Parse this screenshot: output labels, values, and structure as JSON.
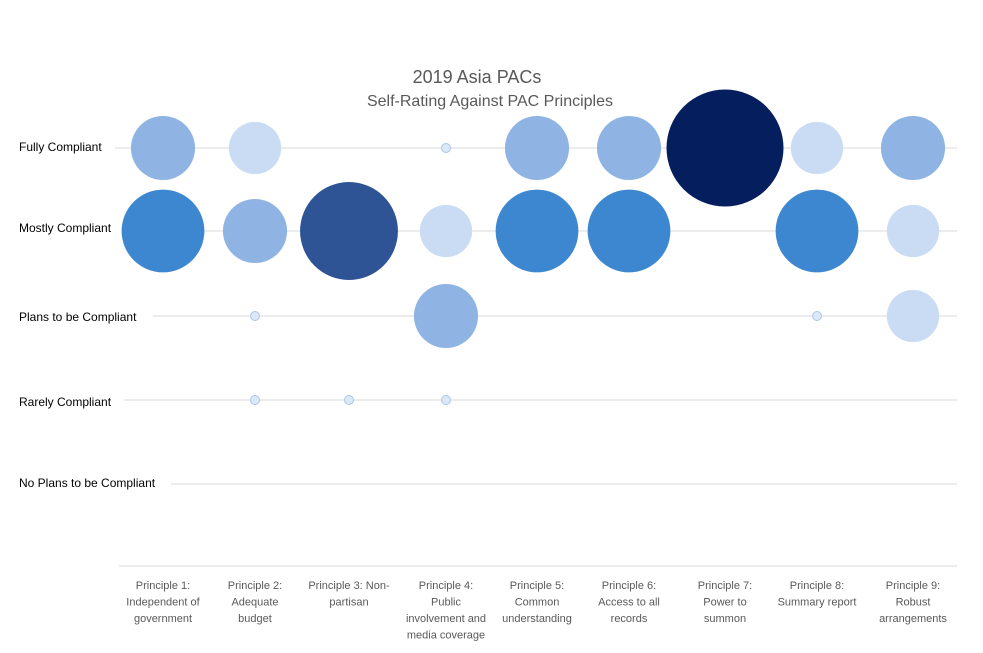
{
  "chart_data": {
    "type": "bubble",
    "title": "2019 Asia PACs",
    "subtitle": "Self-Rating Against PAC Principles",
    "y_categories": [
      "Fully Compliant",
      "Mostly Compliant",
      "Plans to be Compliant",
      "Rarely Compliant",
      "No Plans to be Compliant"
    ],
    "x_categories": [
      [
        "Principle 1:",
        "Independent of",
        "government"
      ],
      [
        "Principle 2:",
        "Adequate",
        "budget"
      ],
      [
        "Principle 3: Non-",
        "partisan"
      ],
      [
        "Principle 4:",
        "Public",
        "involvement and",
        "media coverage"
      ],
      [
        "Principle 5:",
        "Common",
        "understanding"
      ],
      [
        "Principle 6:",
        "Access to all",
        "records"
      ],
      [
        "Principle 7:",
        "Power to",
        "summon"
      ],
      [
        "Principle 8:",
        "Summary report"
      ],
      [
        "Principle 9:",
        "Robust",
        "arrangements"
      ]
    ],
    "bubbles": [
      {
        "x": 1,
        "y": "Fully Compliant",
        "size": 3
      },
      {
        "x": 2,
        "y": "Fully Compliant",
        "size": 2
      },
      {
        "x": 4,
        "y": "Fully Compliant",
        "size": 1
      },
      {
        "x": 5,
        "y": "Fully Compliant",
        "size": 3
      },
      {
        "x": 6,
        "y": "Fully Compliant",
        "size": 3
      },
      {
        "x": 7,
        "y": "Fully Compliant",
        "size": 10
      },
      {
        "x": 8,
        "y": "Fully Compliant",
        "size": 2
      },
      {
        "x": 9,
        "y": "Fully Compliant",
        "size": 3
      },
      {
        "x": 1,
        "y": "Mostly Compliant",
        "size": 5
      },
      {
        "x": 2,
        "y": "Mostly Compliant",
        "size": 3
      },
      {
        "x": 3,
        "y": "Mostly Compliant",
        "size": 7
      },
      {
        "x": 4,
        "y": "Mostly Compliant",
        "size": 2
      },
      {
        "x": 5,
        "y": "Mostly Compliant",
        "size": 5
      },
      {
        "x": 6,
        "y": "Mostly Compliant",
        "size": 5
      },
      {
        "x": 8,
        "y": "Mostly Compliant",
        "size": 5
      },
      {
        "x": 9,
        "y": "Mostly Compliant",
        "size": 2
      },
      {
        "x": 2,
        "y": "Plans to be Compliant",
        "size": 1
      },
      {
        "x": 4,
        "y": "Plans to be Compliant",
        "size": 3
      },
      {
        "x": 8,
        "y": "Plans to be Compliant",
        "size": 1
      },
      {
        "x": 9,
        "y": "Plans to be Compliant",
        "size": 2
      },
      {
        "x": 2,
        "y": "Rarely Compliant",
        "size": 1
      },
      {
        "x": 3,
        "y": "Rarely Compliant",
        "size": 1
      },
      {
        "x": 4,
        "y": "Rarely Compliant",
        "size": 1
      }
    ],
    "size_colors": {
      "1": "#dbe8f7",
      "2": "#c9dcf3",
      "3": "#8fb4e3",
      "5": "#3d87d0",
      "7": "#2e5496",
      "10": "#041e5e"
    },
    "grid": true,
    "legend": "none"
  }
}
